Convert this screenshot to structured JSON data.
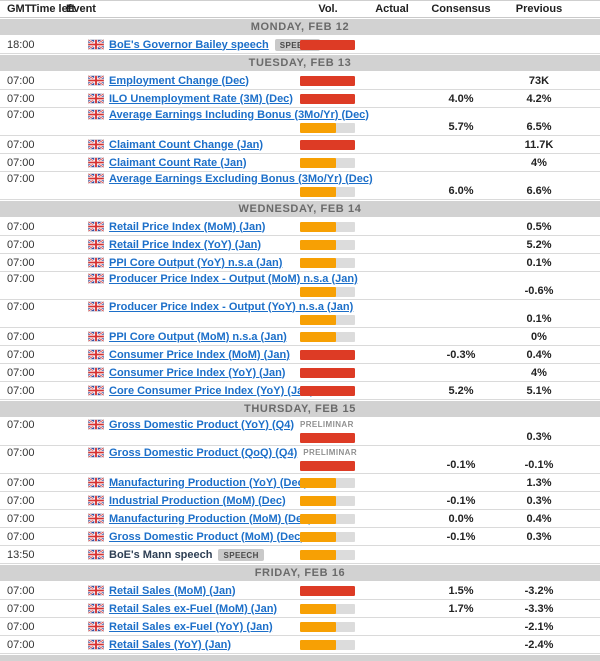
{
  "header": {
    "columns": [
      "GMT",
      "Time left",
      "Event",
      "Vol.",
      "Actual",
      "Consensus",
      "Previous"
    ]
  },
  "colors": {
    "red": "#dd3b25",
    "orange": "#f7a004",
    "track": "#dcdcdc",
    "band_bg": "#d2d2d2",
    "link_blue": "#1c6fc9"
  },
  "vol_levels": {
    "high": {
      "pct": 100,
      "color_key": "red"
    },
    "medium": {
      "pct": 65,
      "color_key": "orange"
    }
  },
  "flag_icon": "uk-flag-icon",
  "sections": [
    {
      "day": "MONDAY, FEB 12",
      "events": [
        {
          "time": "18:00",
          "title": "BoE's Governor Bailey speech",
          "badge": "SPEECH",
          "badge_type": "box",
          "impact": "high",
          "link": true,
          "tall": false,
          "actual": "",
          "consensus": "",
          "previous": ""
        }
      ]
    },
    {
      "day": "TUESDAY, FEB 13",
      "events": [
        {
          "time": "07:00",
          "title": "Employment Change (Dec)",
          "badge": "",
          "badge_type": "",
          "impact": "high",
          "link": true,
          "tall": false,
          "actual": "",
          "consensus": "",
          "previous": "73K"
        },
        {
          "time": "07:00",
          "title": "ILO Unemployment Rate (3M) (Dec)",
          "badge": "",
          "badge_type": "",
          "impact": "high",
          "link": true,
          "tall": false,
          "actual": "",
          "consensus": "4.0%",
          "previous": "4.2%"
        },
        {
          "time": "07:00",
          "title": "Average Earnings Including Bonus (3Mo/Yr) (Dec)",
          "badge": "",
          "badge_type": "",
          "impact": "medium",
          "link": true,
          "tall": true,
          "actual": "",
          "consensus": "5.7%",
          "previous": "6.5%"
        },
        {
          "time": "07:00",
          "title": "Claimant Count Change (Jan)",
          "badge": "",
          "badge_type": "",
          "impact": "high",
          "link": true,
          "tall": false,
          "actual": "",
          "consensus": "",
          "previous": "11.7K"
        },
        {
          "time": "07:00",
          "title": "Claimant Count Rate (Jan)",
          "badge": "",
          "badge_type": "",
          "impact": "medium",
          "link": true,
          "tall": false,
          "actual": "",
          "consensus": "",
          "previous": "4%"
        },
        {
          "time": "07:00",
          "title": "Average Earnings Excluding Bonus (3Mo/Yr) (Dec)",
          "badge": "",
          "badge_type": "",
          "impact": "medium",
          "link": true,
          "tall": true,
          "actual": "",
          "consensus": "6.0%",
          "previous": "6.6%"
        }
      ]
    },
    {
      "day": "WEDNESDAY, FEB 14",
      "events": [
        {
          "time": "07:00",
          "title": "Retail Price Index (MoM) (Jan)",
          "badge": "",
          "badge_type": "",
          "impact": "medium",
          "link": true,
          "tall": false,
          "actual": "",
          "consensus": "",
          "previous": "0.5%"
        },
        {
          "time": "07:00",
          "title": "Retail Price Index (YoY) (Jan)",
          "badge": "",
          "badge_type": "",
          "impact": "medium",
          "link": true,
          "tall": false,
          "actual": "",
          "consensus": "",
          "previous": "5.2%"
        },
        {
          "time": "07:00",
          "title": "PPI Core Output (YoY) n.s.a (Jan)",
          "badge": "",
          "badge_type": "",
          "impact": "medium",
          "link": true,
          "tall": false,
          "actual": "",
          "consensus": "",
          "previous": "0.1%"
        },
        {
          "time": "07:00",
          "title": "Producer Price Index - Output (MoM) n.s.a (Jan)",
          "badge": "",
          "badge_type": "",
          "impact": "medium",
          "link": true,
          "tall": true,
          "actual": "",
          "consensus": "",
          "previous": "-0.6%"
        },
        {
          "time": "07:00",
          "title": "Producer Price Index - Output (YoY) n.s.a (Jan)",
          "badge": "",
          "badge_type": "",
          "impact": "medium",
          "link": true,
          "tall": true,
          "actual": "",
          "consensus": "",
          "previous": "0.1%"
        },
        {
          "time": "07:00",
          "title": "PPI Core Output (MoM) n.s.a (Jan)",
          "badge": "",
          "badge_type": "",
          "impact": "medium",
          "link": true,
          "tall": false,
          "actual": "",
          "consensus": "",
          "previous": "0%"
        },
        {
          "time": "07:00",
          "title": "Consumer Price Index (MoM) (Jan)",
          "badge": "",
          "badge_type": "",
          "impact": "high",
          "link": true,
          "tall": false,
          "actual": "",
          "consensus": "-0.3%",
          "previous": "0.4%"
        },
        {
          "time": "07:00",
          "title": "Consumer Price Index (YoY) (Jan)",
          "badge": "",
          "badge_type": "",
          "impact": "high",
          "link": true,
          "tall": false,
          "actual": "",
          "consensus": "",
          "previous": "4%"
        },
        {
          "time": "07:00",
          "title": "Core Consumer Price Index (YoY) (Jan)",
          "badge": "",
          "badge_type": "",
          "impact": "high",
          "link": true,
          "tall": false,
          "actual": "",
          "consensus": "5.2%",
          "previous": "5.1%"
        }
      ]
    },
    {
      "day": "THURSDAY, FEB 15",
      "events": [
        {
          "time": "07:00",
          "title": "Gross Domestic Product (YoY) (Q4)",
          "badge": "PRELIMINAR",
          "badge_type": "plain",
          "impact": "high",
          "link": true,
          "tall": true,
          "actual": "",
          "consensus": "",
          "previous": "0.3%"
        },
        {
          "time": "07:00",
          "title": "Gross Domestic Product (QoQ) (Q4)",
          "badge": "PRELIMINAR",
          "badge_type": "plain",
          "impact": "high",
          "link": true,
          "tall": true,
          "actual": "",
          "consensus": "-0.1%",
          "previous": "-0.1%"
        },
        {
          "time": "07:00",
          "title": "Manufacturing Production (YoY) (Dec)",
          "badge": "",
          "badge_type": "",
          "impact": "medium",
          "link": true,
          "tall": false,
          "actual": "",
          "consensus": "",
          "previous": "1.3%"
        },
        {
          "time": "07:00",
          "title": "Industrial Production (MoM) (Dec)",
          "badge": "",
          "badge_type": "",
          "impact": "medium",
          "link": true,
          "tall": false,
          "actual": "",
          "consensus": "-0.1%",
          "previous": "0.3%"
        },
        {
          "time": "07:00",
          "title": "Manufacturing Production (MoM) (Dec)",
          "badge": "",
          "badge_type": "",
          "impact": "medium",
          "link": true,
          "tall": false,
          "actual": "",
          "consensus": "0.0%",
          "previous": "0.4%"
        },
        {
          "time": "07:00",
          "title": "Gross Domestic Product (MoM) (Dec)",
          "badge": "",
          "badge_type": "",
          "impact": "medium",
          "link": true,
          "tall": false,
          "actual": "",
          "consensus": "-0.1%",
          "previous": "0.3%"
        },
        {
          "time": "13:50",
          "title": "BoE's Mann speech",
          "badge": "SPEECH",
          "badge_type": "box",
          "impact": "medium",
          "link": false,
          "tall": false,
          "actual": "",
          "consensus": "",
          "previous": ""
        }
      ]
    },
    {
      "day": "FRIDAY, FEB 16",
      "events": [
        {
          "time": "07:00",
          "title": "Retail Sales (MoM) (Jan)",
          "badge": "",
          "badge_type": "",
          "impact": "high",
          "link": true,
          "tall": false,
          "actual": "",
          "consensus": "1.5%",
          "previous": "-3.2%"
        },
        {
          "time": "07:00",
          "title": "Retail Sales ex-Fuel (MoM) (Jan)",
          "badge": "",
          "badge_type": "",
          "impact": "medium",
          "link": true,
          "tall": false,
          "actual": "",
          "consensus": "1.7%",
          "previous": "-3.3%"
        },
        {
          "time": "07:00",
          "title": "Retail Sales ex-Fuel (YoY) (Jan)",
          "badge": "",
          "badge_type": "",
          "impact": "medium",
          "link": true,
          "tall": false,
          "actual": "",
          "consensus": "",
          "previous": "-2.1%"
        },
        {
          "time": "07:00",
          "title": "Retail Sales (YoY) (Jan)",
          "badge": "",
          "badge_type": "",
          "impact": "medium",
          "link": true,
          "tall": false,
          "actual": "",
          "consensus": "",
          "previous": "-2.4%"
        }
      ]
    }
  ]
}
